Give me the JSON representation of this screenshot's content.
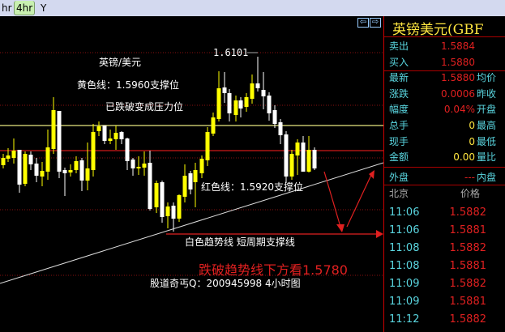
{
  "toolbar": {
    "timeframes": [
      {
        "label": "hr",
        "selected": false
      },
      {
        "label": "4hr",
        "selected": true
      },
      {
        "label": "Y",
        "selected": false
      }
    ]
  },
  "chart": {
    "annotations": {
      "pair": "英镑/美元",
      "yellow_line": "黄色线：1.5960支撑位",
      "yellow_note": "已跌破变成压力位",
      "high": "1.6101",
      "red_line": "红色线：1.5920支撑位",
      "trend_line": "白色趋势线 短周期支撑线",
      "forecast": "跌破趋势线下方看1.5780",
      "footer": "股道奇丐Q：200945998  4小时图"
    },
    "colors": {
      "bull": "#ffff00",
      "bear": "#ffffff",
      "support_yellow": "#e8e880",
      "support_red": "#d01818",
      "grid": "#8a1010"
    }
  },
  "panel": {
    "title": "英镑美元(GBF",
    "quotes": [
      {
        "label": "卖出",
        "value": "1.5884",
        "right": ""
      },
      {
        "label": "买入",
        "value": "1.5880",
        "right": ""
      },
      {
        "label": "最新",
        "value": "1.5880",
        "right": "均价"
      },
      {
        "label": "涨跌",
        "value": "0.0006",
        "right": "昨收"
      },
      {
        "label": "幅度",
        "value": "0.04%",
        "right": "开盘"
      },
      {
        "label": "总手",
        "value": "0",
        "right": "最高"
      },
      {
        "label": "现手",
        "value": "0",
        "right": "最低"
      },
      {
        "label": "金额",
        "value": "0.00",
        "right": "量比"
      },
      {
        "label": "外盘",
        "value": "---",
        "right": "内盘"
      }
    ],
    "ticks_header": {
      "time": "北京",
      "price": "价格"
    },
    "ticks": [
      {
        "time": "11:06",
        "price": "1.5882"
      },
      {
        "time": "11:06",
        "price": "1.5881"
      },
      {
        "time": "11:08",
        "price": "1.5882"
      },
      {
        "time": "11:08",
        "price": "1.5881"
      },
      {
        "time": "11:09",
        "price": "1.5882"
      },
      {
        "time": "11:09",
        "price": "1.5881"
      },
      {
        "time": "11:12",
        "price": "1.5882"
      }
    ]
  }
}
